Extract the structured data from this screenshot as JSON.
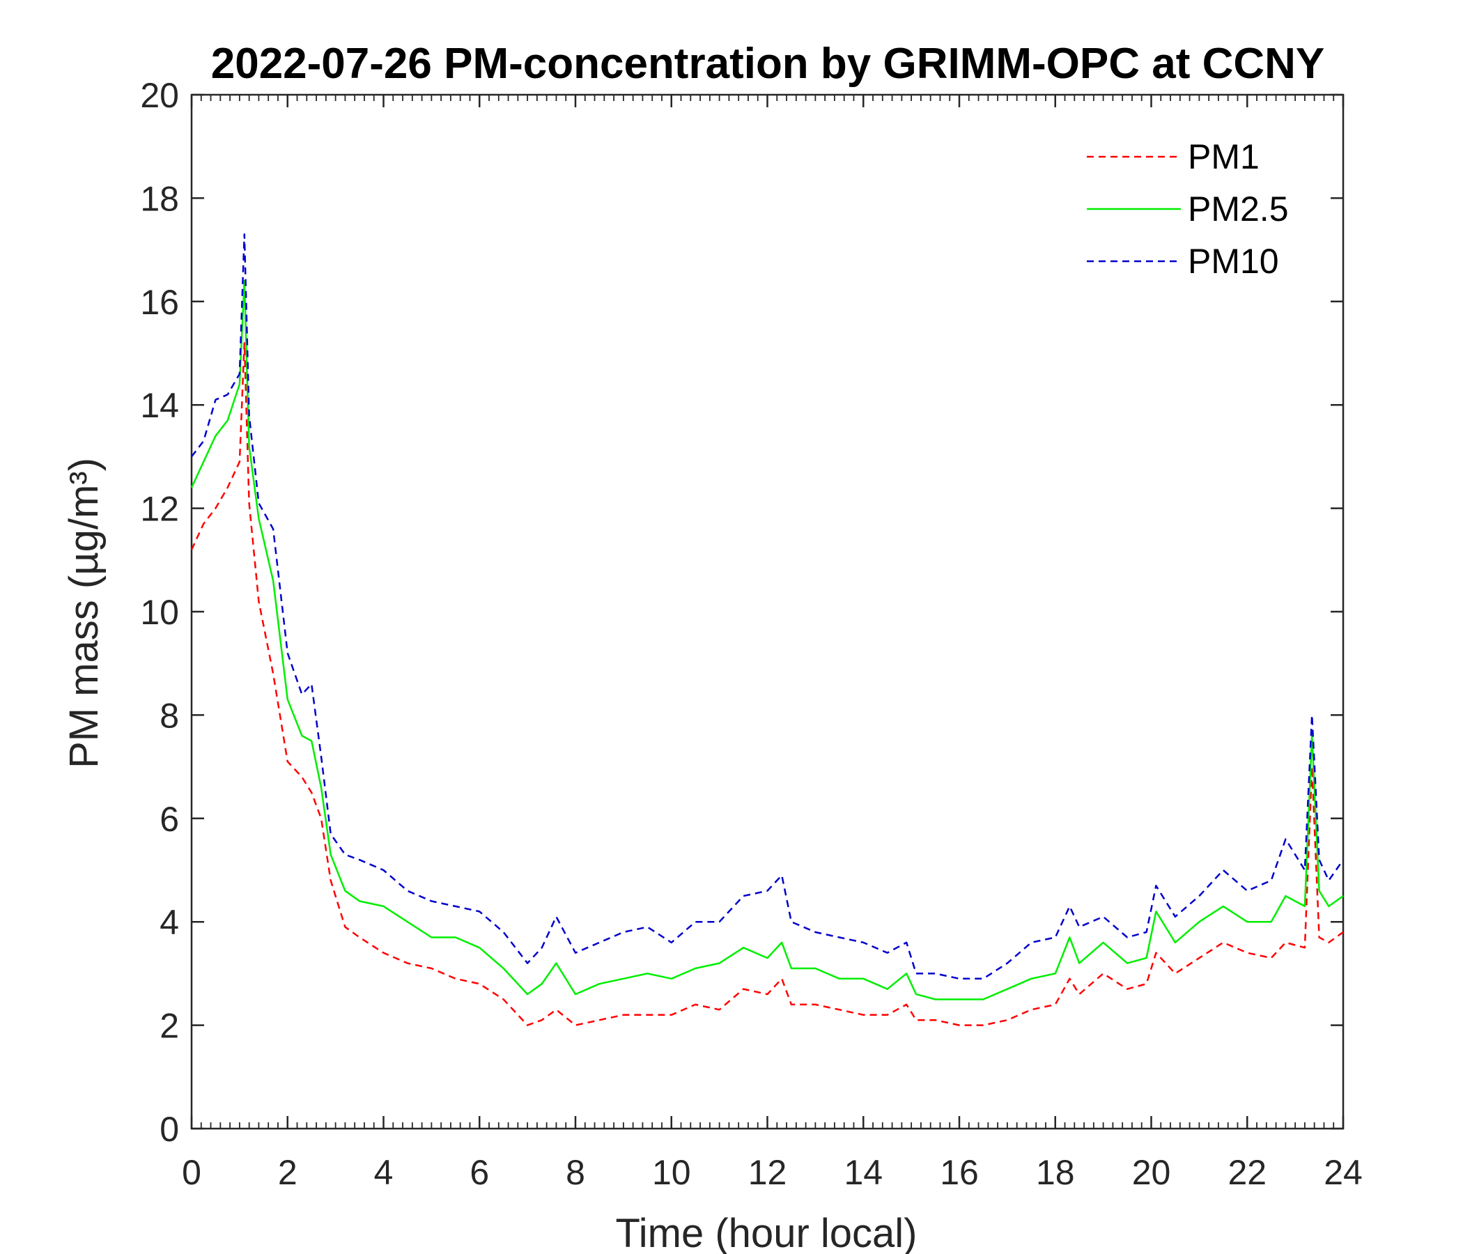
{
  "chart_data": {
    "type": "line",
    "title": "2022-07-26 PM-concentration by GRIMM-OPC at CCNY",
    "xlabel": "Time (hour local)",
    "ylabel": "PM mass (µg/m³)",
    "xlim": [
      0,
      24
    ],
    "ylim": [
      0,
      20
    ],
    "xticks": [
      "0",
      "2",
      "4",
      "6",
      "8",
      "10",
      "12",
      "14",
      "16",
      "18",
      "20",
      "22",
      "24"
    ],
    "yticks": [
      "0",
      "2",
      "4",
      "6",
      "8",
      "10",
      "12",
      "14",
      "16",
      "18",
      "20"
    ],
    "grid": false,
    "legend_position": "top-right",
    "x": [
      0,
      0.25,
      0.5,
      0.75,
      1.0,
      1.1,
      1.2,
      1.4,
      1.7,
      2.0,
      2.3,
      2.5,
      2.7,
      2.9,
      3.2,
      3.5,
      4.0,
      4.5,
      5.0,
      5.5,
      6.0,
      6.5,
      7.0,
      7.3,
      7.6,
      8.0,
      8.5,
      9.0,
      9.5,
      10.0,
      10.5,
      11.0,
      11.5,
      12.0,
      12.3,
      12.5,
      13.0,
      13.5,
      14.0,
      14.5,
      14.9,
      15.1,
      15.5,
      16.0,
      16.5,
      17.0,
      17.5,
      18.0,
      18.3,
      18.5,
      19.0,
      19.5,
      19.9,
      20.1,
      20.5,
      21.0,
      21.5,
      22.0,
      22.5,
      22.8,
      23.2,
      23.35,
      23.5,
      23.7,
      24.0
    ],
    "series": [
      {
        "name": "PM1",
        "color": "#ff0000",
        "style": "dashed",
        "values": [
          11.2,
          11.7,
          12.0,
          12.4,
          12.9,
          15.2,
          12.1,
          10.2,
          8.8,
          7.1,
          6.8,
          6.5,
          6.0,
          4.8,
          3.9,
          3.7,
          3.4,
          3.2,
          3.1,
          2.9,
          2.8,
          2.5,
          2.0,
          2.1,
          2.3,
          2.0,
          2.1,
          2.2,
          2.2,
          2.2,
          2.4,
          2.3,
          2.7,
          2.6,
          2.9,
          2.4,
          2.4,
          2.3,
          2.2,
          2.2,
          2.4,
          2.1,
          2.1,
          2.0,
          2.0,
          2.1,
          2.3,
          2.4,
          2.9,
          2.6,
          3.0,
          2.7,
          2.8,
          3.4,
          3.0,
          3.3,
          3.6,
          3.4,
          3.3,
          3.6,
          3.5,
          7.0,
          3.7,
          3.6,
          3.8
        ]
      },
      {
        "name": "PM2.5",
        "color": "#00ee00",
        "style": "solid",
        "values": [
          12.4,
          12.9,
          13.4,
          13.7,
          14.4,
          16.4,
          13.2,
          11.8,
          10.6,
          8.3,
          7.6,
          7.5,
          6.6,
          5.3,
          4.6,
          4.4,
          4.3,
          4.0,
          3.7,
          3.7,
          3.5,
          3.1,
          2.6,
          2.8,
          3.2,
          2.6,
          2.8,
          2.9,
          3.0,
          2.9,
          3.1,
          3.2,
          3.5,
          3.3,
          3.6,
          3.1,
          3.1,
          2.9,
          2.9,
          2.7,
          3.0,
          2.6,
          2.5,
          2.5,
          2.5,
          2.7,
          2.9,
          3.0,
          3.7,
          3.2,
          3.6,
          3.2,
          3.3,
          4.2,
          3.6,
          4.0,
          4.3,
          4.0,
          4.0,
          4.5,
          4.3,
          7.6,
          4.6,
          4.3,
          4.5
        ]
      },
      {
        "name": "PM10",
        "color": "#0000cc",
        "style": "dashed",
        "values": [
          13.0,
          13.3,
          14.1,
          14.2,
          14.6,
          17.3,
          13.8,
          12.1,
          11.6,
          9.2,
          8.4,
          8.6,
          7.2,
          5.7,
          5.3,
          5.2,
          5.0,
          4.6,
          4.4,
          4.3,
          4.2,
          3.8,
          3.2,
          3.5,
          4.1,
          3.4,
          3.6,
          3.8,
          3.9,
          3.6,
          4.0,
          4.0,
          4.5,
          4.6,
          4.9,
          4.0,
          3.8,
          3.7,
          3.6,
          3.4,
          3.6,
          3.0,
          3.0,
          2.9,
          2.9,
          3.2,
          3.6,
          3.7,
          4.3,
          3.9,
          4.1,
          3.7,
          3.8,
          4.7,
          4.1,
          4.5,
          5.0,
          4.6,
          4.8,
          5.6,
          5.0,
          8.0,
          5.2,
          4.8,
          5.2
        ]
      }
    ]
  }
}
